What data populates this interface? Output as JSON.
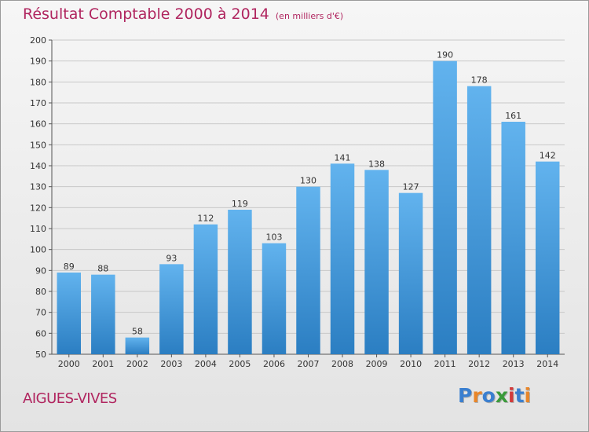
{
  "title": "Résultat Comptable 2000 à 2014",
  "unit": "(en milliers d'€)",
  "town": "AIGUES-VIVES",
  "logo": {
    "text": "Proxiti",
    "colors": [
      "#3a7fd0",
      "#e8862a",
      "#3a7fd0",
      "#3a9a3a",
      "#d23a3a",
      "#3a7fd0",
      "#e8862a"
    ]
  },
  "colors": {
    "title": "#b0255f",
    "bar_top": "#62b3ee",
    "bar_bottom": "#2b7ec2",
    "grid": "#c8c8c8"
  },
  "chart_data": {
    "type": "bar",
    "categories": [
      "2000",
      "2001",
      "2002",
      "2003",
      "2004",
      "2005",
      "2006",
      "2007",
      "2008",
      "2009",
      "2010",
      "2011",
      "2012",
      "2013",
      "2014"
    ],
    "values": [
      89,
      88,
      58,
      93,
      112,
      119,
      103,
      130,
      141,
      138,
      127,
      190,
      178,
      161,
      142
    ],
    "ylim": [
      50,
      200
    ],
    "yticks": [
      50,
      60,
      70,
      80,
      90,
      100,
      110,
      120,
      130,
      140,
      150,
      160,
      170,
      180,
      190,
      200
    ],
    "grid": true
  }
}
